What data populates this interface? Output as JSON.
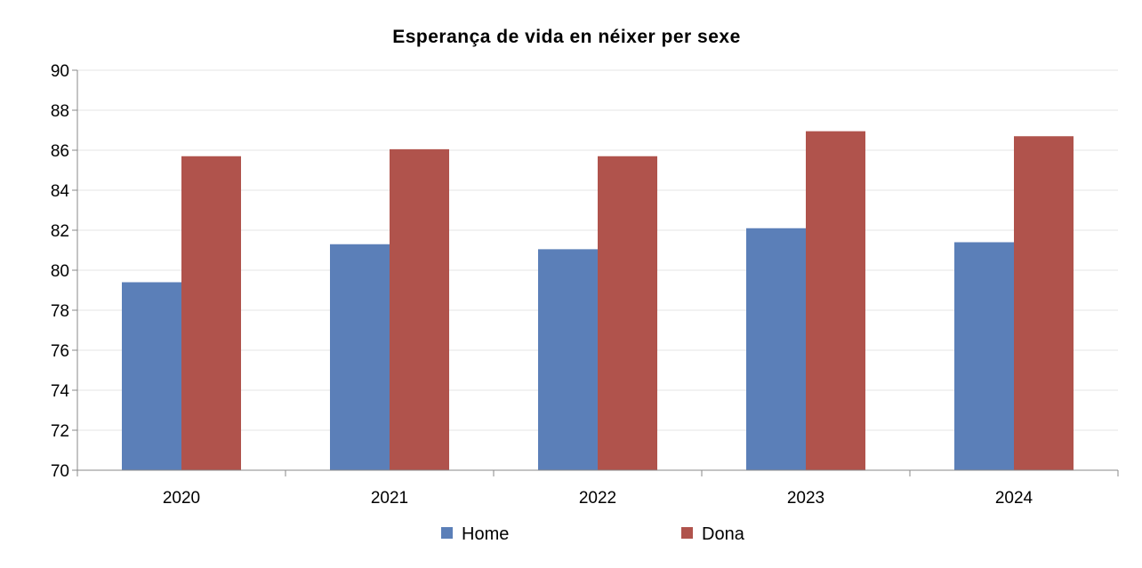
{
  "chart_data": {
    "type": "bar",
    "title": "Esperança de vida en néixer per sexe",
    "xlabel": "",
    "ylabel": "",
    "categories": [
      "2020",
      "2021",
      "2022",
      "2023",
      "2024"
    ],
    "series": [
      {
        "name": "Home",
        "color": "#5b7fb8",
        "values": [
          79.4,
          81.3,
          81.05,
          82.1,
          81.4
        ]
      },
      {
        "name": "Dona",
        "color": "#b0534c",
        "values": [
          85.7,
          86.05,
          85.7,
          86.95,
          86.7
        ]
      }
    ],
    "ylim": [
      70,
      90
    ],
    "yticks": [
      "70",
      "72",
      "74",
      "76",
      "78",
      "80",
      "82",
      "84",
      "86",
      "88",
      "90"
    ],
    "grid": true,
    "legend": "bottom-center"
  }
}
